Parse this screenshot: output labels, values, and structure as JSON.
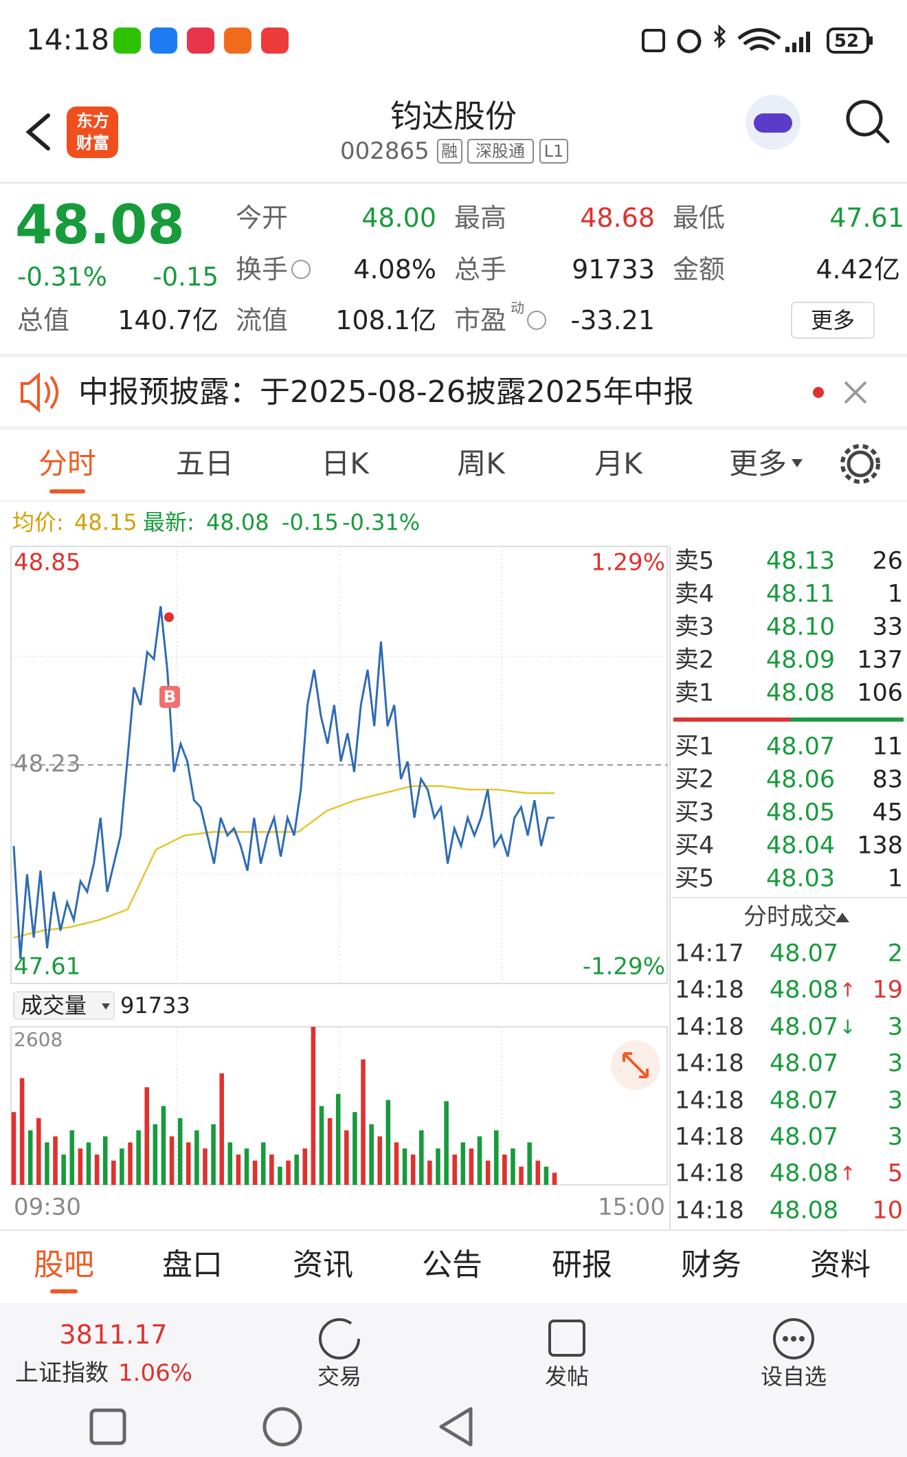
{
  "status_bar": {
    "time": "14:18",
    "battery": "52"
  },
  "header": {
    "logo": [
      "东方",
      "财富"
    ],
    "title": "钧达股份",
    "code": "002865",
    "tags": [
      "融",
      "深股通",
      "L1"
    ]
  },
  "quote": {
    "price": "48.08",
    "change_pct": "-0.31%",
    "change": "-0.15",
    "fields": [
      {
        "label": "今开",
        "value": "48.00"
      },
      {
        "label": "最高",
        "value": "48.68"
      },
      {
        "label": "最低",
        "value": "47.61"
      },
      {
        "label": "换手",
        "value": "4.08%"
      },
      {
        "label": "总手",
        "value": "91733"
      },
      {
        "label": "金额",
        "value": "4.42亿"
      },
      {
        "label": "总值",
        "value": "140.7亿"
      },
      {
        "label": "流值",
        "value": "108.1亿"
      },
      {
        "label": "市盈",
        "superscript": "动",
        "value": "-33.21"
      }
    ],
    "more": "更多"
  },
  "notice": "中报预披露：于2025-08-26披露2025年中报",
  "chart_tabs": [
    "分时",
    "五日",
    "日K",
    "周K",
    "月K",
    "更多"
  ],
  "info_line": {
    "avg_label": "均价:",
    "avg": "48.15",
    "latest_label": "最新:",
    "latest": "48.08",
    "change": "-0.15",
    "change_pct": "-0.31%"
  },
  "chart_data": {
    "type": "line",
    "ylim": [
      47.61,
      48.85
    ],
    "yticks": [
      47.61,
      48.23,
      48.85
    ],
    "pct_labels": [
      "-1.29%",
      "1.29%"
    ],
    "x_labels": [
      "09:30",
      "15:00"
    ],
    "marker_label": "B",
    "price": {
      "color": "#2e6bb4",
      "values": [
        48.0,
        47.68,
        47.92,
        47.74,
        47.93,
        47.71,
        47.87,
        47.76,
        47.84,
        47.79,
        47.9,
        47.87,
        47.95,
        48.08,
        47.87,
        47.95,
        48.03,
        48.24,
        48.45,
        48.4,
        48.55,
        48.53,
        48.68,
        48.5,
        48.21,
        48.29,
        48.24,
        48.13,
        48.11,
        48.03,
        47.95,
        48.08,
        48.03,
        48.05,
        48.0,
        47.93,
        48.08,
        47.95,
        48.03,
        48.08,
        47.97,
        48.08,
        48.03,
        48.16,
        48.4,
        48.5,
        48.37,
        48.29,
        48.4,
        48.24,
        48.32,
        48.21,
        48.4,
        48.5,
        48.34,
        48.58,
        48.34,
        48.4,
        48.19,
        48.24,
        48.08,
        48.19,
        48.16,
        48.08,
        48.11,
        47.95,
        48.05,
        48.0,
        48.08,
        48.03,
        48.08,
        48.16,
        48.0,
        48.03,
        47.97,
        48.08,
        48.11,
        48.03,
        48.13,
        48.0,
        48.08,
        48.08
      ]
    },
    "average": {
      "color": "#e8c42a",
      "values": [
        47.74,
        47.76,
        47.77,
        47.79,
        47.82,
        47.99,
        48.03,
        48.04,
        48.04,
        48.04,
        48.04,
        48.1,
        48.13,
        48.15,
        48.17,
        48.17,
        48.16,
        48.16,
        48.15,
        48.15
      ]
    }
  },
  "volume": {
    "label": "成交量",
    "total": "91733",
    "ylim": [
      0,
      2608
    ],
    "yticks": [
      2608
    ],
    "values": [
      1200,
      1760,
      900,
      1100,
      700,
      800,
      500,
      900,
      600,
      700,
      500,
      800,
      400,
      600,
      700,
      900,
      1610,
      1000,
      1300,
      800,
      1100,
      700,
      900,
      600,
      1000,
      1840,
      700,
      500,
      600,
      400,
      700,
      500,
      300,
      400,
      500,
      600,
      2608,
      1300,
      1100,
      1500,
      900,
      1200,
      2070,
      1000,
      800,
      1400,
      700,
      600,
      500,
      900,
      400,
      600,
      1380,
      500,
      700,
      600,
      800,
      400,
      900,
      500,
      600,
      300,
      700,
      400,
      300,
      200
    ],
    "colors": [
      "#e0312e",
      "#e0312e",
      "#179b3b",
      "#e0312e",
      "#179b3b",
      "#e0312e",
      "#179b3b",
      "#179b3b",
      "#e0312e",
      "#179b3b",
      "#e0312e",
      "#179b3b",
      "#e0312e",
      "#179b3b",
      "#e0312e",
      "#179b3b",
      "#e0312e",
      "#179b3b",
      "#179b3b",
      "#e0312e",
      "#179b3b",
      "#e0312e",
      "#179b3b",
      "#e0312e",
      "#179b3b",
      "#e0312e",
      "#179b3b",
      "#e0312e",
      "#179b3b",
      "#e0312e",
      "#179b3b",
      "#e0312e",
      "#179b3b",
      "#e0312e",
      "#179b3b",
      "#e0312e",
      "#e0312e",
      "#179b3b",
      "#e0312e",
      "#179b3b",
      "#e0312e",
      "#179b3b",
      "#e0312e",
      "#179b3b",
      "#e0312e",
      "#179b3b",
      "#e0312e",
      "#179b3b",
      "#e0312e",
      "#179b3b",
      "#e0312e",
      "#179b3b",
      "#179b3b",
      "#e0312e",
      "#179b3b",
      "#e0312e",
      "#179b3b",
      "#e0312e",
      "#179b3b",
      "#e0312e",
      "#179b3b",
      "#e0312e",
      "#179b3b",
      "#e0312e",
      "#179b3b",
      "#e0312e"
    ]
  },
  "order_book": {
    "asks": [
      {
        "label": "卖5",
        "price": "48.13",
        "volume": "26"
      },
      {
        "label": "卖4",
        "price": "48.11",
        "volume": "1"
      },
      {
        "label": "卖3",
        "price": "48.10",
        "volume": "33"
      },
      {
        "label": "卖2",
        "price": "48.09",
        "volume": "137"
      },
      {
        "label": "卖1",
        "price": "48.08",
        "volume": "106"
      }
    ],
    "bids": [
      {
        "label": "买1",
        "price": "48.07",
        "volume": "11"
      },
      {
        "label": "买2",
        "price": "48.06",
        "volume": "83"
      },
      {
        "label": "买3",
        "price": "48.05",
        "volume": "45"
      },
      {
        "label": "买4",
        "price": "48.04",
        "volume": "138"
      },
      {
        "label": "买5",
        "price": "48.03",
        "volume": "1"
      }
    ]
  },
  "trades": {
    "title": "分时成交",
    "rows": [
      {
        "time": "14:17",
        "price": "48.07",
        "volume": "2",
        "color": "#179b3b"
      },
      {
        "time": "14:18",
        "price": "48.08",
        "arrow": "↑",
        "volume": "19",
        "color": "#e0312e"
      },
      {
        "time": "14:18",
        "price": "48.07",
        "arrow": "↓",
        "volume": "3",
        "color": "#179b3b"
      },
      {
        "time": "14:18",
        "price": "48.07",
        "volume": "3",
        "color": "#179b3b"
      },
      {
        "time": "14:18",
        "price": "48.07",
        "volume": "3",
        "color": "#179b3b"
      },
      {
        "time": "14:18",
        "price": "48.07",
        "volume": "3",
        "color": "#179b3b"
      },
      {
        "time": "14:18",
        "price": "48.08",
        "arrow": "↑",
        "volume": "5",
        "color": "#e0312e"
      },
      {
        "time": "14:18",
        "price": "48.08",
        "volume": "10",
        "color": "#e0312e"
      }
    ]
  },
  "bottom_tabs": [
    "股吧",
    "盘口",
    "资讯",
    "公告",
    "研报",
    "财务",
    "资料"
  ],
  "bottom_bar": {
    "index_value": "3811.17",
    "index_name": "上证指数",
    "index_change": "1.06%",
    "actions": [
      "交易",
      "发帖",
      "设自选"
    ]
  }
}
